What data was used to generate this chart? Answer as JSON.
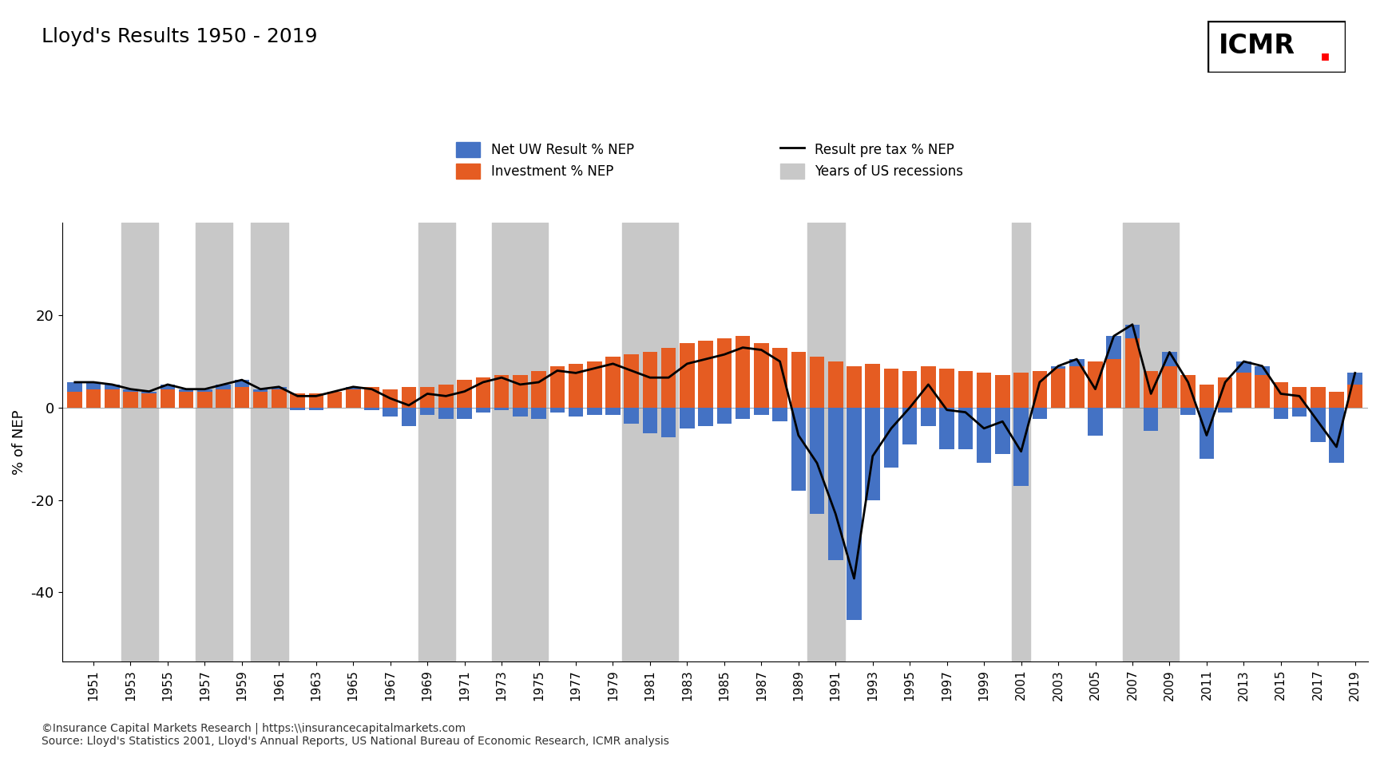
{
  "title": "Lloyd's Results 1950 - 2019",
  "ylabel": "% of NEP",
  "footer_line1": "©Insurance Capital Markets Research | https:\\\\insurancecapitalmarkets.com",
  "footer_line2": "Source: Lloyd's Statistics 2001, Lloyd's Annual Reports, US National Bureau of Economic Research, ICMR analysis",
  "years": [
    1950,
    1951,
    1952,
    1953,
    1954,
    1955,
    1956,
    1957,
    1958,
    1959,
    1960,
    1961,
    1962,
    1963,
    1964,
    1965,
    1966,
    1967,
    1968,
    1969,
    1970,
    1971,
    1972,
    1973,
    1974,
    1975,
    1976,
    1977,
    1978,
    1979,
    1980,
    1981,
    1982,
    1983,
    1984,
    1985,
    1986,
    1987,
    1988,
    1989,
    1990,
    1991,
    1992,
    1993,
    1994,
    1995,
    1996,
    1997,
    1998,
    1999,
    2000,
    2001,
    2002,
    2003,
    2004,
    2005,
    2006,
    2007,
    2008,
    2009,
    2010,
    2011,
    2012,
    2013,
    2014,
    2015,
    2016,
    2017,
    2018,
    2019
  ],
  "uw_result": [
    2.0,
    1.5,
    1.0,
    0.5,
    0.5,
    1.0,
    0.5,
    0.5,
    1.0,
    1.5,
    0.5,
    0.5,
    -0.5,
    -0.5,
    0.0,
    0.5,
    -0.5,
    -2.0,
    -4.0,
    -1.5,
    -2.5,
    -2.5,
    -1.0,
    -0.5,
    -2.0,
    -2.5,
    -1.0,
    -2.0,
    -1.5,
    -1.5,
    -3.5,
    -5.5,
    -6.5,
    -4.5,
    -4.0,
    -3.5,
    -2.5,
    -1.5,
    -3.0,
    -18.0,
    -23.0,
    -33.0,
    -46.0,
    -20.0,
    -13.0,
    -8.0,
    -4.0,
    -9.0,
    -9.0,
    -12.0,
    -10.0,
    -17.0,
    -2.5,
    0.5,
    1.5,
    -6.0,
    5.0,
    3.0,
    -5.0,
    3.0,
    -1.5,
    -11.0,
    -1.0,
    2.5,
    2.0,
    -2.5,
    -2.0,
    -7.5,
    -12.0,
    2.5
  ],
  "investment": [
    3.5,
    4.0,
    4.0,
    3.5,
    3.0,
    4.0,
    3.5,
    3.5,
    4.0,
    4.5,
    3.5,
    4.0,
    3.0,
    3.0,
    3.5,
    4.0,
    4.5,
    4.0,
    4.5,
    4.5,
    5.0,
    6.0,
    6.5,
    7.0,
    7.0,
    8.0,
    9.0,
    9.5,
    10.0,
    11.0,
    11.5,
    12.0,
    13.0,
    14.0,
    14.5,
    15.0,
    15.5,
    14.0,
    13.0,
    12.0,
    11.0,
    10.0,
    9.0,
    9.5,
    8.5,
    8.0,
    9.0,
    8.5,
    8.0,
    7.5,
    7.0,
    7.5,
    8.0,
    8.5,
    9.0,
    10.0,
    10.5,
    15.0,
    8.0,
    9.0,
    7.0,
    5.0,
    6.5,
    7.5,
    7.0,
    5.5,
    4.5,
    4.5,
    3.5,
    5.0
  ],
  "result_pretax": [
    5.5,
    5.5,
    5.0,
    4.0,
    3.5,
    5.0,
    4.0,
    4.0,
    5.0,
    6.0,
    4.0,
    4.5,
    2.5,
    2.5,
    3.5,
    4.5,
    4.0,
    2.0,
    0.5,
    3.0,
    2.5,
    3.5,
    5.5,
    6.5,
    5.0,
    5.5,
    8.0,
    7.5,
    8.5,
    9.5,
    8.0,
    6.5,
    6.5,
    9.5,
    10.5,
    11.5,
    13.0,
    12.5,
    10.0,
    -6.0,
    -12.0,
    -23.0,
    -37.0,
    -10.5,
    -4.5,
    0.0,
    5.0,
    -0.5,
    -1.0,
    -4.5,
    -3.0,
    -9.5,
    5.5,
    9.0,
    10.5,
    4.0,
    15.5,
    18.0,
    3.0,
    12.0,
    5.5,
    -6.0,
    5.5,
    10.0,
    9.0,
    3.0,
    2.5,
    -3.0,
    -8.5,
    7.5
  ],
  "recession_years": [
    1953,
    1954,
    1957,
    1958,
    1960,
    1961,
    1969,
    1970,
    1973,
    1974,
    1975,
    1980,
    1981,
    1982,
    1990,
    1991,
    2001,
    2007,
    2008,
    2009
  ],
  "bar_color_uw": "#4472c4",
  "bar_color_inv": "#e55c22",
  "line_color": "#000000",
  "recession_color": "#c8c8c8",
  "ylim": [
    -55,
    40
  ],
  "yticks": [
    -40,
    -20,
    0,
    20
  ],
  "background_color": "#ffffff"
}
